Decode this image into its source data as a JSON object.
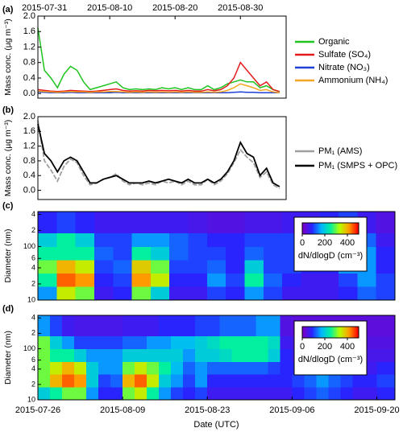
{
  "chart_data": [
    {
      "type": "line",
      "panel_label": "(a)",
      "ylabel": "Mass conc. (µg m⁻³)",
      "x": [
        "2015-07-30",
        "2015-07-31",
        "2015-08-01",
        "2015-08-02",
        "2015-08-03",
        "2015-08-04",
        "2015-08-05",
        "2015-08-06",
        "2015-08-07",
        "2015-08-08",
        "2015-08-09",
        "2015-08-10",
        "2015-08-11",
        "2015-08-12",
        "2015-08-13",
        "2015-08-14",
        "2015-08-15",
        "2015-08-16",
        "2015-08-17",
        "2015-08-18",
        "2015-08-19",
        "2015-08-20",
        "2015-08-21",
        "2015-08-22",
        "2015-08-23",
        "2015-08-24",
        "2015-08-25",
        "2015-08-26",
        "2015-08-27",
        "2015-08-28",
        "2015-08-29",
        "2015-08-30",
        "2015-08-31",
        "2015-09-01",
        "2015-09-02",
        "2015-09-03",
        "2015-09-04",
        "2015-09-05"
      ],
      "xlim": [
        "2015-07-30",
        "2015-09-06"
      ],
      "xticks": [
        "2015-07-31",
        "2015-08-10",
        "2015-08-20",
        "2015-08-30"
      ],
      "xtick_side": "top",
      "ylim": [
        -0.12,
        2.0
      ],
      "yticks": [
        {
          "value": 0,
          "label": "0.0"
        },
        0.4,
        0.8,
        1.2,
        1.6,
        {
          "value": 2,
          "label": "2.0"
        }
      ],
      "series": [
        {
          "name": "Organic",
          "color": "#1fc41f",
          "values": [
            1.7,
            0.6,
            0.4,
            0.15,
            0.5,
            0.7,
            0.6,
            0.3,
            0.1,
            0.15,
            0.2,
            0.25,
            0.3,
            0.15,
            0.1,
            0.12,
            0.1,
            0.12,
            0.1,
            0.15,
            0.12,
            0.15,
            0.1,
            0.15,
            0.1,
            0.1,
            0.2,
            0.1,
            0.15,
            0.25,
            0.3,
            0.35,
            0.3,
            0.3,
            0.15,
            0.2,
            0.1,
            0.05
          ]
        },
        {
          "name": "Sulfate (SO₄)",
          "color": "#e31a1c",
          "values": [
            0.1,
            0.08,
            0.06,
            0.05,
            0.06,
            0.08,
            0.07,
            0.06,
            0.05,
            0.06,
            0.08,
            0.1,
            0.12,
            0.08,
            0.06,
            0.07,
            0.06,
            0.08,
            0.07,
            0.08,
            0.07,
            0.08,
            0.06,
            0.08,
            0.06,
            0.06,
            0.1,
            0.07,
            0.1,
            0.2,
            0.4,
            0.8,
            0.6,
            0.4,
            0.2,
            0.3,
            0.1,
            0.05
          ]
        },
        {
          "name": "Nitrate (NO₃)",
          "color": "#1f3fd6",
          "values": [
            0.04,
            0.03,
            0.02,
            0.02,
            0.02,
            0.03,
            0.02,
            0.02,
            0.02,
            0.02,
            0.02,
            0.02,
            0.03,
            0.02,
            0.02,
            0.02,
            0.02,
            0.02,
            0.02,
            0.02,
            0.02,
            0.02,
            0.02,
            0.02,
            0.02,
            0.02,
            0.02,
            0.02,
            0.02,
            0.02,
            0.03,
            0.04,
            0.03,
            0.03,
            0.02,
            0.02,
            0.02,
            0.02
          ]
        },
        {
          "name": "Ammonium (NH₄)",
          "color": "#f5a623",
          "values": [
            0.06,
            0.05,
            0.04,
            0.03,
            0.04,
            0.05,
            0.04,
            0.04,
            0.03,
            0.04,
            0.04,
            0.05,
            0.05,
            0.04,
            0.03,
            0.04,
            0.03,
            0.04,
            0.03,
            0.04,
            0.03,
            0.04,
            0.03,
            0.04,
            0.03,
            0.03,
            0.04,
            0.03,
            0.04,
            0.08,
            0.15,
            0.25,
            0.2,
            0.15,
            0.08,
            0.1,
            0.04,
            0.02
          ]
        }
      ]
    },
    {
      "type": "line",
      "panel_label": "(b)",
      "ylabel": "Mass conc. (µg m⁻³)",
      "x": [
        "2015-07-30",
        "2015-07-31",
        "2015-08-01",
        "2015-08-02",
        "2015-08-03",
        "2015-08-04",
        "2015-08-05",
        "2015-08-06",
        "2015-08-07",
        "2015-08-08",
        "2015-08-09",
        "2015-08-10",
        "2015-08-11",
        "2015-08-12",
        "2015-08-13",
        "2015-08-14",
        "2015-08-15",
        "2015-08-16",
        "2015-08-17",
        "2015-08-18",
        "2015-08-19",
        "2015-08-20",
        "2015-08-21",
        "2015-08-22",
        "2015-08-23",
        "2015-08-24",
        "2015-08-25",
        "2015-08-26",
        "2015-08-27",
        "2015-08-28",
        "2015-08-29",
        "2015-08-30",
        "2015-08-31",
        "2015-09-01",
        "2015-09-02",
        "2015-09-03",
        "2015-09-04",
        "2015-09-05"
      ],
      "xlim": [
        "2015-07-30",
        "2015-09-06"
      ],
      "ylim": [
        -0.25,
        2.0
      ],
      "yticks": [
        {
          "value": 0,
          "label": "0.0"
        },
        0.4,
        0.8,
        1.2,
        1.6,
        {
          "value": 2,
          "label": "2.0"
        }
      ],
      "series": [
        {
          "name": "PM₁ (AMS)",
          "color": "#a0a0a0",
          "values": [
            1.9,
            0.8,
            0.55,
            0.25,
            0.65,
            0.85,
            0.75,
            0.4,
            0.15,
            0.2,
            0.3,
            0.35,
            0.45,
            0.25,
            0.15,
            0.2,
            0.15,
            0.2,
            0.15,
            0.25,
            0.2,
            0.25,
            0.15,
            0.25,
            0.15,
            0.15,
            0.3,
            0.15,
            0.25,
            0.45,
            0.75,
            1.1,
            0.9,
            0.75,
            0.35,
            0.5,
            0.15,
            0.05
          ]
        },
        {
          "name": "PM₁ (SMPS + OPC)",
          "color": "#000000",
          "values": [
            1.8,
            1.0,
            0.8,
            0.5,
            0.8,
            0.9,
            0.8,
            0.5,
            0.2,
            0.2,
            0.3,
            0.35,
            0.4,
            0.3,
            0.2,
            0.2,
            0.2,
            0.25,
            0.2,
            0.25,
            0.3,
            0.25,
            0.2,
            0.3,
            0.2,
            0.2,
            0.3,
            0.2,
            0.3,
            0.5,
            0.8,
            1.3,
            1.0,
            0.9,
            0.4,
            0.6,
            0.2,
            0.1
          ]
        }
      ]
    },
    {
      "type": "heatmap",
      "panel_label": "(c)",
      "ylabel": "Diameter (nm)",
      "ylog": true,
      "x_bins": [
        "2015-07-30",
        "2015-08-01",
        "2015-08-03",
        "2015-08-05",
        "2015-08-07",
        "2015-08-09",
        "2015-08-11",
        "2015-08-13",
        "2015-08-15",
        "2015-08-17",
        "2015-08-19",
        "2015-08-21",
        "2015-08-23",
        "2015-08-25",
        "2015-08-27",
        "2015-08-29",
        "2015-08-31",
        "2015-09-02",
        "2015-09-04",
        "2015-09-06"
      ],
      "xlim": [
        "2015-07-30",
        "2015-09-06"
      ],
      "y_bins": [
        10,
        18,
        32,
        56,
        100,
        180,
        450
      ],
      "ylim": [
        10,
        450
      ],
      "yticks": [
        10,
        {
          "value": 20,
          "label": "2"
        },
        {
          "value": 40,
          "label": "4"
        },
        {
          "value": 60,
          "label": "6"
        },
        100,
        {
          "value": 200,
          "label": "2"
        },
        {
          "value": 400,
          "label": "4"
        }
      ],
      "zlim": [
        0,
        500
      ],
      "zticks": [
        0,
        200,
        400
      ],
      "zlabel": "dN/dlogD (cm⁻³)",
      "colormap": [
        "#7a00c8",
        "#2626ff",
        "#00b4ff",
        "#00f0a0",
        "#b4ff00",
        "#ffa000",
        "#ff0000"
      ],
      "values": [
        [
          150,
          350,
          300,
          60,
          80,
          300,
          200,
          60,
          60,
          100,
          80,
          150,
          100,
          60,
          60,
          60,
          80,
          120,
          100
        ],
        [
          250,
          450,
          420,
          80,
          100,
          420,
          350,
          80,
          80,
          150,
          100,
          250,
          120,
          80,
          60,
          60,
          100,
          150,
          100
        ],
        [
          300,
          400,
          350,
          100,
          120,
          380,
          300,
          100,
          100,
          120,
          80,
          200,
          100,
          100,
          80,
          80,
          150,
          150,
          80
        ],
        [
          250,
          250,
          250,
          120,
          100,
          250,
          200,
          120,
          100,
          100,
          80,
          120,
          100,
          100,
          100,
          120,
          200,
          150,
          80
        ],
        [
          200,
          250,
          200,
          100,
          100,
          150,
          150,
          120,
          100,
          80,
          80,
          100,
          100,
          100,
          120,
          150,
          200,
          120,
          60
        ],
        [
          80,
          100,
          80,
          60,
          60,
          60,
          60,
          60,
          50,
          40,
          40,
          50,
          50,
          60,
          60,
          80,
          100,
          60,
          40
        ]
      ]
    },
    {
      "type": "heatmap",
      "panel_label": "(d)",
      "ylabel": "Diameter (nm)",
      "xlabel": "Date (UTC)",
      "ylog": true,
      "x_bins": [
        "2015-07-26",
        "2015-07-28",
        "2015-07-30",
        "2015-08-01",
        "2015-08-03",
        "2015-08-05",
        "2015-08-07",
        "2015-08-09",
        "2015-08-11",
        "2015-08-13",
        "2015-08-15",
        "2015-08-17",
        "2015-08-19",
        "2015-08-21",
        "2015-08-23",
        "2015-08-25",
        "2015-08-27",
        "2015-08-29",
        "2015-08-31",
        "2015-09-02",
        "2015-09-04",
        "2015-09-06",
        "2015-09-08",
        "2015-09-10",
        "2015-09-12",
        "2015-09-14",
        "2015-09-16",
        "2015-09-18",
        "2015-09-20",
        "2015-09-23"
      ],
      "xlim": [
        "2015-07-26",
        "2015-09-23"
      ],
      "xticks": [
        "2015-07-26",
        "2015-08-09",
        "2015-08-23",
        "2015-09-06",
        "2015-09-20"
      ],
      "xtick_side": "bottom",
      "y_bins": [
        10,
        18,
        32,
        56,
        100,
        180,
        450
      ],
      "ylim": [
        10,
        450
      ],
      "yticks": [
        10,
        {
          "value": 20,
          "label": "2"
        },
        {
          "value": 40,
          "label": "4"
        },
        {
          "value": 60,
          "label": "6"
        },
        100,
        {
          "value": 200,
          "label": "2"
        },
        {
          "value": 400,
          "label": "4"
        }
      ],
      "zlim": [
        0,
        500
      ],
      "zticks": [
        0,
        200,
        400
      ],
      "zlabel": "dN/dlogD (cm⁻³)",
      "colormap": [
        "#7a00c8",
        "#2626ff",
        "#00b4ff",
        "#00f0a0",
        "#b4ff00",
        "#ffa000",
        "#ff0000"
      ],
      "values": [
        [
          200,
          250,
          300,
          300,
          150,
          80,
          80,
          300,
          350,
          250,
          150,
          100,
          80,
          100,
          60,
          60,
          60,
          60,
          60,
          60,
          60,
          80,
          100,
          120,
          100,
          80,
          60,
          60,
          80
        ],
        [
          300,
          400,
          450,
          420,
          200,
          100,
          120,
          400,
          450,
          350,
          200,
          150,
          100,
          150,
          80,
          80,
          80,
          80,
          80,
          80,
          80,
          100,
          120,
          150,
          120,
          100,
          80,
          80,
          100
        ],
        [
          300,
          350,
          400,
          350,
          200,
          150,
          150,
          300,
          350,
          300,
          250,
          180,
          120,
          150,
          120,
          120,
          120,
          120,
          120,
          100,
          80,
          80,
          100,
          100,
          80,
          80,
          60,
          60,
          80
        ],
        [
          300,
          250,
          250,
          200,
          150,
          150,
          150,
          200,
          200,
          200,
          200,
          200,
          150,
          200,
          200,
          220,
          250,
          250,
          250,
          200,
          80,
          60,
          60,
          60,
          60,
          60,
          50,
          50,
          50
        ],
        [
          300,
          200,
          150,
          100,
          100,
          100,
          100,
          120,
          120,
          150,
          150,
          180,
          180,
          200,
          220,
          250,
          250,
          250,
          250,
          220,
          60,
          50,
          50,
          40,
          40,
          40,
          40,
          40,
          40
        ],
        [
          150,
          100,
          60,
          50,
          50,
          50,
          50,
          60,
          60,
          60,
          80,
          80,
          80,
          100,
          100,
          120,
          120,
          120,
          150,
          150,
          40,
          30,
          30,
          30,
          30,
          30,
          30,
          30,
          30
        ]
      ]
    }
  ]
}
